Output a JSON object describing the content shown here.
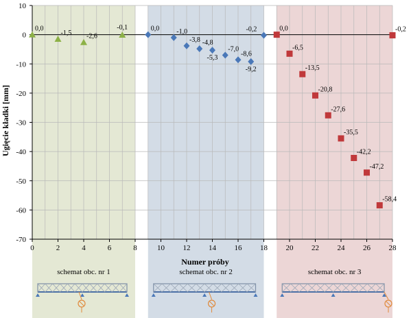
{
  "chart_data": {
    "type": "scatter",
    "xlabel": "Numer próby",
    "ylabel": "Ugięcie kładki [mm]",
    "xlim": [
      0,
      28
    ],
    "ylim": [
      -70,
      10
    ],
    "x_ticks": [
      0,
      2,
      4,
      6,
      8,
      10,
      12,
      14,
      16,
      18,
      20,
      22,
      24,
      26,
      28
    ],
    "y_ticks": [
      10,
      0,
      -10,
      -20,
      -30,
      -40,
      -50,
      -60,
      -70
    ],
    "grid": true,
    "series": [
      {
        "marker": "triangle",
        "color": "#8db147",
        "points": [
          {
            "x": 0,
            "y": 0.0,
            "label": "0,0"
          },
          {
            "x": 2,
            "y": -1.5,
            "label": "-1,5"
          },
          {
            "x": 4,
            "y": -2.6,
            "label": "-2,6"
          },
          {
            "x": 7,
            "y": -0.1,
            "label": "-0,1"
          }
        ]
      },
      {
        "marker": "diamond",
        "color": "#4a78b8",
        "points": [
          {
            "x": 9,
            "y": 0.0,
            "label": "0,0"
          },
          {
            "x": 11,
            "y": -1.0,
            "label": "-1,0"
          },
          {
            "x": 12,
            "y": -3.8,
            "label": "-3,8"
          },
          {
            "x": 13,
            "y": -4.8,
            "label": "-4,8"
          },
          {
            "x": 14,
            "y": -5.3,
            "label": "-5,3"
          },
          {
            "x": 15,
            "y": -7.0,
            "label": "-7,0"
          },
          {
            "x": 16,
            "y": -8.6,
            "label": "-8,6"
          },
          {
            "x": 17,
            "y": -9.2,
            "label": "-9,2"
          },
          {
            "x": 18,
            "y": -0.2,
            "label": "-0,2"
          }
        ]
      },
      {
        "marker": "square",
        "color": "#c0393b",
        "points": [
          {
            "x": 19,
            "y": 0.0,
            "label": "0,0"
          },
          {
            "x": 20,
            "y": -6.5,
            "label": "-6,5"
          },
          {
            "x": 21,
            "y": -13.5,
            "label": "-13,5"
          },
          {
            "x": 22,
            "y": -20.8,
            "label": "-20,8"
          },
          {
            "x": 23,
            "y": -27.6,
            "label": "-27,6"
          },
          {
            "x": 24,
            "y": -35.5,
            "label": "-35,5"
          },
          {
            "x": 25,
            "y": -42.2,
            "label": "-42,2"
          },
          {
            "x": 26,
            "y": -47.2,
            "label": "-47,2"
          },
          {
            "x": 27,
            "y": -58.4,
            "label": "-58,4"
          },
          {
            "x": 28,
            "y": -0.2,
            "label": "-0,2"
          }
        ]
      }
    ],
    "regions": [
      {
        "x_from": 0,
        "x_to": 8,
        "color": "#e4e8d4",
        "scheme_label": "schemat obc. nr 1"
      },
      {
        "x_from": 9,
        "x_to": 18,
        "color": "#d3dce6",
        "scheme_label": "schemat obc. nr 2"
      },
      {
        "x_from": 19,
        "x_to": 28,
        "color": "#ecd6d6",
        "scheme_label": "schemat obc. nr 3"
      }
    ]
  }
}
